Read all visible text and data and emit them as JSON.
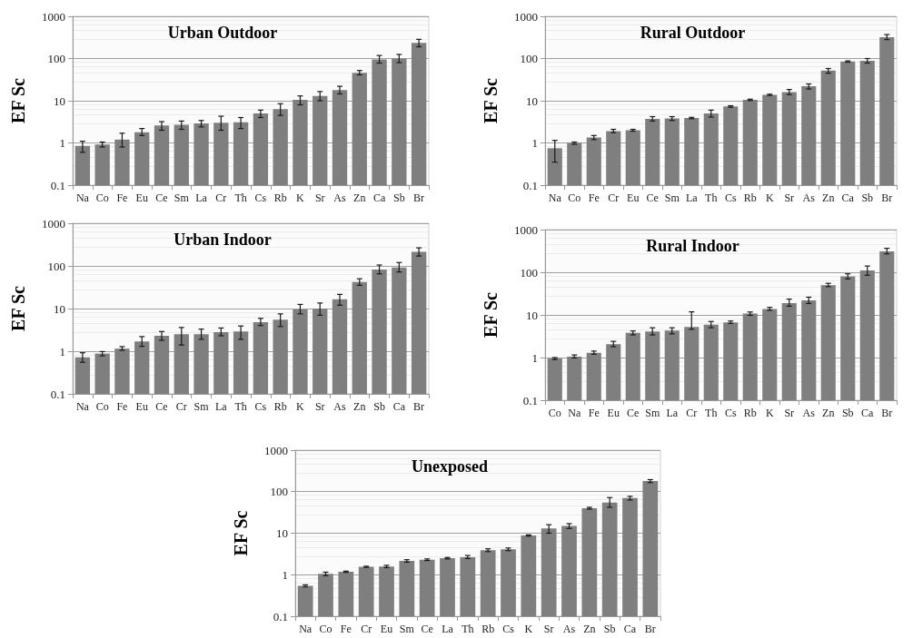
{
  "chart_data": [
    {
      "type": "bar",
      "title": "Urban Outdoor",
      "ylabel": "EF Sc",
      "log": true,
      "grid": "y",
      "ylim": [
        0.1,
        1000
      ],
      "yticks": [
        0.1,
        1,
        10,
        100,
        1000
      ],
      "color": "#7f7f7f",
      "categories": [
        "Na",
        "Co",
        "Fe",
        "Eu",
        "Ce",
        "Sm",
        "La",
        "Cr",
        "Th",
        "Cs",
        "Rb",
        "K",
        "Sr",
        "As",
        "Zn",
        "Ca",
        "Sb",
        "Br"
      ],
      "values": [
        0.85,
        0.92,
        1.2,
        1.8,
        2.6,
        2.7,
        2.9,
        3.0,
        3.1,
        5.0,
        6.3,
        10.5,
        13,
        18,
        46,
        95,
        100,
        235
      ],
      "errors": [
        [
          0.6,
          1.1
        ],
        [
          0.8,
          1.05
        ],
        [
          0.8,
          1.7
        ],
        [
          1.5,
          2.2
        ],
        [
          2.0,
          3.2
        ],
        [
          2.1,
          3.3
        ],
        [
          2.4,
          3.4
        ],
        [
          2.0,
          4.3
        ],
        [
          2.2,
          4.0
        ],
        [
          4.0,
          6.0
        ],
        [
          4.5,
          8.5
        ],
        [
          8,
          13
        ],
        [
          10,
          16.5
        ],
        [
          14.5,
          22
        ],
        [
          41,
          52
        ],
        [
          78,
          118
        ],
        [
          80,
          125
        ],
        [
          190,
          285
        ]
      ]
    },
    {
      "type": "bar",
      "title": "Rural Outdoor",
      "ylabel": "EF Sc",
      "log": true,
      "grid": "y",
      "ylim": [
        0.1,
        1000
      ],
      "yticks": [
        0.1,
        1,
        10,
        100,
        1000
      ],
      "color": "#7f7f7f",
      "categories": [
        "Na",
        "Co",
        "Fe",
        "Cr",
        "Eu",
        "Ce",
        "Sm",
        "La",
        "Th",
        "Cs",
        "Rb",
        "K",
        "Sr",
        "As",
        "Zn",
        "Ca",
        "Sb",
        "Br"
      ],
      "values": [
        0.75,
        1.0,
        1.35,
        1.9,
        2.0,
        3.7,
        3.8,
        3.9,
        5.0,
        7.3,
        10.5,
        13.8,
        16,
        22,
        52,
        85,
        88,
        320
      ],
      "errors": [
        [
          0.35,
          1.15
        ],
        [
          0.93,
          1.05
        ],
        [
          1.2,
          1.5
        ],
        [
          1.75,
          2.1
        ],
        [
          1.9,
          2.1
        ],
        [
          3.3,
          4.2
        ],
        [
          3.4,
          4.2
        ],
        [
          3.75,
          4.05
        ],
        [
          4.1,
          6.0
        ],
        [
          7.0,
          7.6
        ],
        [
          10.1,
          10.9
        ],
        [
          13.3,
          14.3
        ],
        [
          14,
          18.5
        ],
        [
          19,
          25
        ],
        [
          45,
          58
        ],
        [
          82,
          88
        ],
        [
          78,
          100
        ],
        [
          280,
          370
        ]
      ]
    },
    {
      "type": "bar",
      "title": "Urban Indoor",
      "ylabel": "EF Sc",
      "log": true,
      "grid": "y",
      "ylim": [
        0.1,
        1000
      ],
      "yticks": [
        0.1,
        1,
        10,
        100,
        1000
      ],
      "color": "#7f7f7f",
      "categories": [
        "Na",
        "Co",
        "Fe",
        "Eu",
        "Ce",
        "Cr",
        "Sm",
        "La",
        "Th",
        "Cs",
        "Rb",
        "K",
        "Sr",
        "As",
        "Zn",
        "Sb",
        "Ca",
        "Br"
      ],
      "values": [
        0.72,
        0.88,
        1.15,
        1.7,
        2.3,
        2.5,
        2.5,
        2.8,
        2.9,
        4.8,
        5.5,
        9.5,
        10,
        16.5,
        42,
        82,
        92,
        215
      ],
      "errors": [
        [
          0.55,
          0.92
        ],
        [
          0.78,
          0.98
        ],
        [
          1.05,
          1.28
        ],
        [
          1.3,
          2.2
        ],
        [
          1.8,
          2.9
        ],
        [
          1.4,
          3.6
        ],
        [
          1.9,
          3.3
        ],
        [
          2.3,
          3.5
        ],
        [
          1.9,
          3.9
        ],
        [
          4.0,
          5.9
        ],
        [
          3.8,
          7.5
        ],
        [
          7.5,
          12.5
        ],
        [
          7,
          13.5
        ],
        [
          12,
          21.5
        ],
        [
          35,
          50
        ],
        [
          65,
          105
        ],
        [
          72,
          120
        ],
        [
          170,
          265
        ]
      ]
    },
    {
      "type": "bar",
      "title": "Rural Indoor",
      "ylabel": "EF Sc",
      "log": true,
      "grid": "y",
      "ylim": [
        0.1,
        1000
      ],
      "yticks": [
        0.1,
        1,
        10,
        100,
        1000
      ],
      "color": "#7f7f7f",
      "categories": [
        "Co",
        "Na",
        "Fe",
        "Eu",
        "Ce",
        "Sm",
        "La",
        "Cr",
        "Th",
        "Cs",
        "Rb",
        "K",
        "Sr",
        "As",
        "Zn",
        "Sb",
        "Ca",
        "Br"
      ],
      "values": [
        0.95,
        1.05,
        1.3,
        2.05,
        3.8,
        4.1,
        4.3,
        5.2,
        5.9,
        6.7,
        10.7,
        13.8,
        19,
        22,
        50,
        80,
        110,
        310
      ],
      "errors": [
        [
          0.9,
          1.0
        ],
        [
          0.98,
          1.15
        ],
        [
          1.2,
          1.42
        ],
        [
          1.8,
          2.4
        ],
        [
          3.4,
          4.2
        ],
        [
          3.4,
          5.0
        ],
        [
          3.6,
          5.0
        ],
        [
          4.6,
          11.8
        ],
        [
          5.0,
          7.0
        ],
        [
          6.3,
          7.2
        ],
        [
          9.8,
          11.7
        ],
        [
          12.8,
          15
        ],
        [
          16,
          23.5
        ],
        [
          18.5,
          26
        ],
        [
          46,
          55
        ],
        [
          70,
          92
        ],
        [
          85,
          140
        ],
        [
          270,
          365
        ]
      ]
    },
    {
      "type": "bar",
      "title": "Unexposed",
      "ylabel": "EF Sc",
      "log": true,
      "grid": "y",
      "ylim": [
        0.1,
        1000
      ],
      "yticks": [
        0.1,
        1,
        10,
        100,
        1000
      ],
      "color": "#7f7f7f",
      "categories": [
        "Na",
        "Co",
        "Fe",
        "Cr",
        "Eu",
        "Sm",
        "Ce",
        "La",
        "Th",
        "Rb",
        "Cs",
        "K",
        "Sr",
        "As",
        "Zn",
        "Sb",
        "Ca",
        "Br"
      ],
      "values": [
        0.54,
        1.05,
        1.18,
        1.55,
        1.58,
        2.15,
        2.3,
        2.5,
        2.65,
        3.9,
        4.1,
        8.8,
        13,
        15,
        40,
        55,
        70,
        180
      ],
      "errors": [
        [
          0.51,
          0.57
        ],
        [
          0.95,
          1.15
        ],
        [
          1.14,
          1.22
        ],
        [
          1.5,
          1.6
        ],
        [
          1.48,
          1.68
        ],
        [
          2.0,
          2.3
        ],
        [
          2.2,
          2.4
        ],
        [
          2.4,
          2.6
        ],
        [
          2.45,
          2.9
        ],
        [
          3.6,
          4.2
        ],
        [
          3.8,
          4.4
        ],
        [
          8.5,
          9.1
        ],
        [
          10,
          16
        ],
        [
          13,
          17
        ],
        [
          38,
          42
        ],
        [
          42,
          72
        ],
        [
          63,
          77
        ],
        [
          165,
          195
        ]
      ]
    }
  ]
}
